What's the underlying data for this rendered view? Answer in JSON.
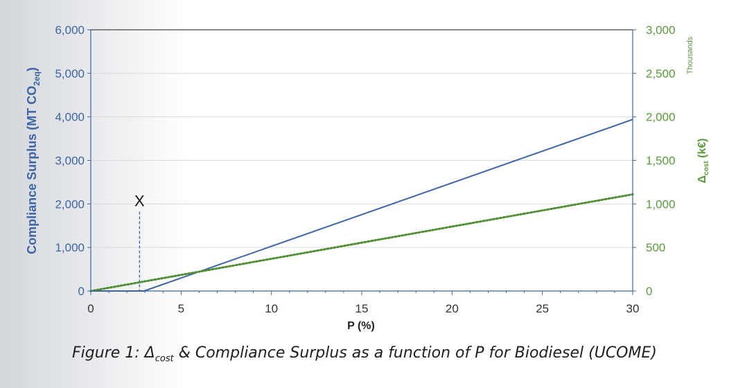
{
  "chart_data": {
    "type": "line",
    "xlabel": "P (%)",
    "xlim": [
      0,
      30
    ],
    "x_ticks": [
      "0",
      "5",
      "10",
      "15",
      "20",
      "25",
      "30"
    ],
    "y_left": {
      "label_main": "Compliance Surplus (MT CO",
      "label_sub": "2eq",
      "label_end": ")",
      "lim": [
        0,
        6000
      ],
      "ticks": [
        "0",
        "1,000",
        "2,000",
        "3,000",
        "4,000",
        "5,000",
        "6,000"
      ],
      "color": "#3d65a5"
    },
    "y_right": {
      "label_main": "Δ",
      "label_sub": "cost",
      "label_end": " (k€)",
      "units_note": "Thousands",
      "lim": [
        0,
        3000000
      ],
      "ticks": [
        "0",
        "500",
        "1,000",
        "1,500",
        "2,000",
        "2,500",
        "3,000"
      ],
      "color": "#5a9a3c"
    },
    "series": [
      {
        "axis": "left",
        "color": "#3d65a5",
        "x": [
          0,
          2.95,
          30
        ],
        "y": [
          0,
          0,
          3940
        ]
      },
      {
        "axis": "right",
        "color": "#5a9a3c",
        "x": [
          0,
          30
        ],
        "y": [
          0,
          1110000
        ]
      }
    ],
    "annotation": {
      "text": "X",
      "x": 2.7,
      "y_left": 1950
    },
    "grid": true
  },
  "caption": {
    "prefix": "Figure 1: Δ",
    "sub": "cost",
    "suffix": " & Compliance Surplus as a function of P for Biodiesel (UCOME)"
  }
}
